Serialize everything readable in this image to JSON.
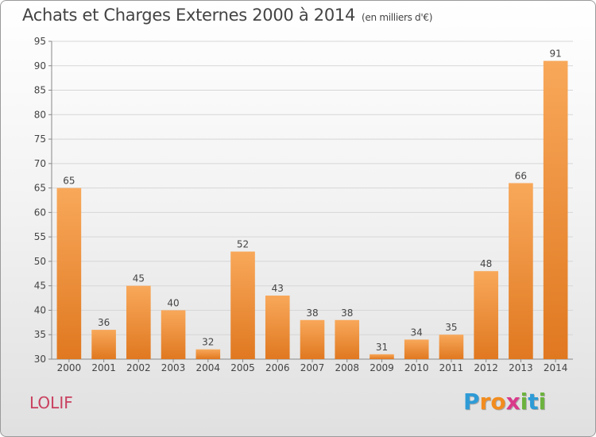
{
  "title": "Achats et Charges Externes 2000 à 2014",
  "subtitle": "(en milliers d'€)",
  "commune": "LOLIF",
  "logo": {
    "letters": [
      "P",
      "r",
      "o",
      "x",
      "i",
      "t",
      "i"
    ],
    "colors": [
      "#2e9bd6",
      "#f28c1e",
      "#f28c1e",
      "#d93a8a",
      "#6cb33e",
      "#2e9bd6",
      "#6cb33e"
    ]
  },
  "colors": {
    "bar_light": "#f8a85a",
    "bar_dark": "#e07820",
    "text": "#444444",
    "commune": "#c9405f"
  },
  "chart_data": {
    "type": "bar",
    "categories": [
      "2000",
      "2001",
      "2002",
      "2003",
      "2004",
      "2005",
      "2006",
      "2007",
      "2008",
      "2009",
      "2010",
      "2011",
      "2012",
      "2013",
      "2014"
    ],
    "values": [
      65,
      36,
      45,
      40,
      32,
      52,
      43,
      38,
      38,
      31,
      34,
      35,
      48,
      66,
      91
    ],
    "ylim": [
      30,
      95
    ],
    "yticks": [
      30,
      35,
      40,
      45,
      50,
      55,
      60,
      65,
      70,
      75,
      80,
      85,
      90,
      95
    ],
    "grid": true,
    "title": "Achats et Charges Externes 2000 à 2014",
    "xlabel": "",
    "ylabel": ""
  }
}
